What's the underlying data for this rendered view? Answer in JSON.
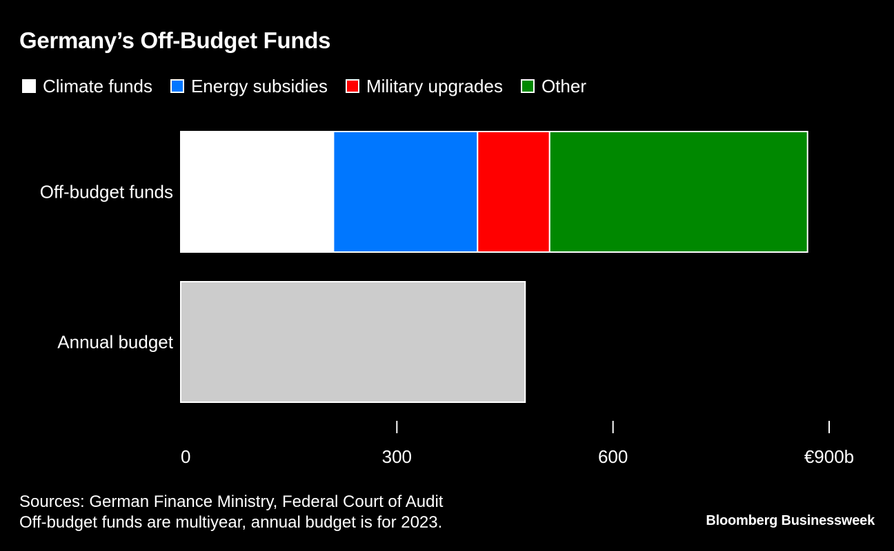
{
  "chart_data": {
    "type": "bar",
    "orientation": "horizontal",
    "stacked": true,
    "title": "Germany’s Off-Budget Funds",
    "categories": [
      "Off-budget funds",
      "Annual budget"
    ],
    "series": [
      {
        "name": "Climate funds",
        "color": "#ffffff",
        "values": [
          212,
          0
        ]
      },
      {
        "name": "Energy subsidies",
        "color": "#0077ff",
        "values": [
          200,
          0
        ]
      },
      {
        "name": "Military upgrades",
        "color": "#ff0000",
        "values": [
          100,
          0
        ]
      },
      {
        "name": "Other",
        "color": "#008800",
        "values": [
          358,
          0
        ]
      },
      {
        "color": "#cccccc",
        "values": [
          0,
          478
        ]
      }
    ],
    "x_ticks": [
      0,
      300,
      600,
      900
    ],
    "x_tick_labels": [
      "0",
      "300",
      "600",
      "€900b"
    ],
    "xlim": [
      0,
      900
    ],
    "legend_position": "top-left",
    "grid": false
  },
  "footnote": {
    "line1": "Sources: German Finance Ministry, Federal Court of Audit",
    "line2": "Off-budget funds are multiyear, annual budget is for 2023."
  },
  "brand": "Bloomberg Businessweek"
}
